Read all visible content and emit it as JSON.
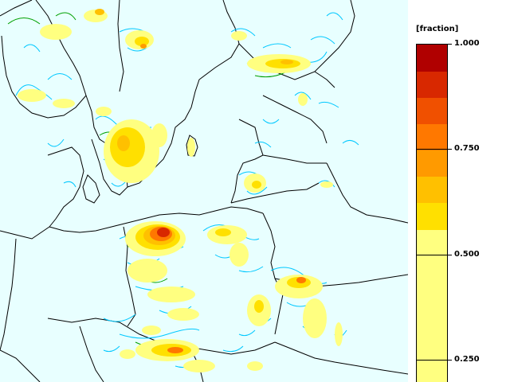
{
  "legend": {
    "unit": "[fraction]",
    "colors": [
      "#ffff80",
      "#ffe000",
      "#ffc000",
      "#ff9a00",
      "#ff7800",
      "#f05000",
      "#d82800",
      "#b00000"
    ],
    "ticks": [
      {
        "label": "1.000",
        "value": 1.0
      },
      {
        "label": "0.750",
        "value": 0.75
      },
      {
        "label": "0.500",
        "value": 0.5
      },
      {
        "label": "0.250",
        "value": 0.25
      }
    ]
  },
  "map": {
    "background_color": "#e8ffff",
    "contour_colors": [
      "#00c8ff",
      "#00a000"
    ],
    "border_color": "#000000"
  }
}
